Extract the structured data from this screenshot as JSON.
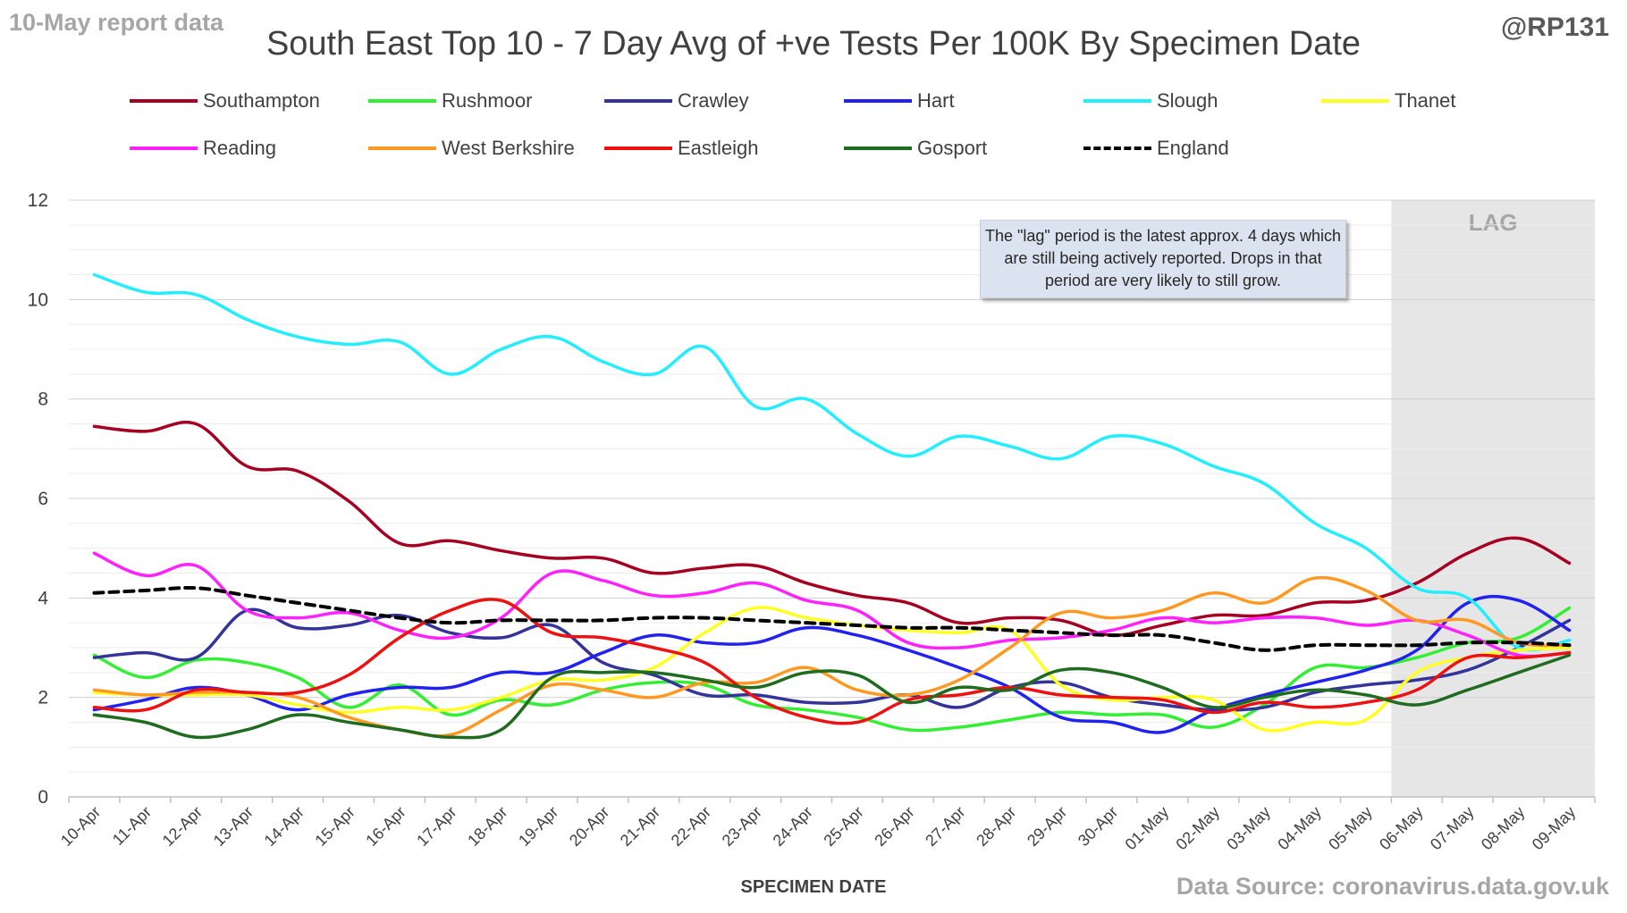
{
  "header": {
    "report_label": "10-May report data",
    "handle": "@RP131",
    "source": "Data Source: coronavirus.data.gov.uk"
  },
  "note": "The \"lag\" period is the latest approx. 4 days which are still being actively reported.  Drops in that period are very likely to still grow.",
  "lag_label": "LAG",
  "chart_data": {
    "type": "line",
    "title": "South East Top 10 - 7 Day Avg of +ve Tests Per 100K By Specimen Date",
    "xlabel": "SPECIMEN DATE",
    "ylabel": "",
    "ylim": [
      0,
      12
    ],
    "yticks": [
      0,
      2,
      4,
      6,
      8,
      10,
      12
    ],
    "grid": true,
    "legend_position": "top",
    "lag_start": "06-May",
    "categories": [
      "10-Apr",
      "11-Apr",
      "12-Apr",
      "13-Apr",
      "14-Apr",
      "15-Apr",
      "16-Apr",
      "17-Apr",
      "18-Apr",
      "19-Apr",
      "20-Apr",
      "21-Apr",
      "22-Apr",
      "23-Apr",
      "24-Apr",
      "25-Apr",
      "26-Apr",
      "27-Apr",
      "28-Apr",
      "29-Apr",
      "30-Apr",
      "01-May",
      "02-May",
      "03-May",
      "04-May",
      "05-May",
      "06-May",
      "07-May",
      "08-May",
      "09-May"
    ],
    "series": [
      {
        "name": "Southampton",
        "color": "#a50021",
        "dash": false,
        "values": [
          7.45,
          7.35,
          7.5,
          6.65,
          6.55,
          5.95,
          5.1,
          5.15,
          4.95,
          4.8,
          4.8,
          4.5,
          4.6,
          4.65,
          4.3,
          4.05,
          3.9,
          3.5,
          3.6,
          3.55,
          3.25,
          3.45,
          3.65,
          3.65,
          3.9,
          3.95,
          4.3,
          4.9,
          5.2,
          4.7
        ]
      },
      {
        "name": "Rushmoor",
        "color": "#33ee33",
        "dash": false,
        "values": [
          2.85,
          2.4,
          2.75,
          2.7,
          2.4,
          1.8,
          2.25,
          1.65,
          1.95,
          1.85,
          2.15,
          2.3,
          2.25,
          1.85,
          1.75,
          1.6,
          1.35,
          1.4,
          1.55,
          1.7,
          1.65,
          1.65,
          1.4,
          1.85,
          2.6,
          2.6,
          2.8,
          3.1,
          3.2,
          3.8
        ]
      },
      {
        "name": "Crawley",
        "color": "#333399",
        "dash": false,
        "values": [
          2.8,
          2.9,
          2.8,
          3.75,
          3.4,
          3.45,
          3.65,
          3.3,
          3.2,
          3.45,
          2.7,
          2.45,
          2.05,
          2.05,
          1.9,
          1.9,
          2.05,
          1.8,
          2.2,
          2.3,
          2.0,
          1.85,
          1.75,
          1.8,
          2.1,
          2.25,
          2.35,
          2.55,
          3.0,
          3.55
        ]
      },
      {
        "name": "Hart",
        "color": "#2222ee",
        "dash": false,
        "values": [
          1.75,
          1.95,
          2.2,
          2.05,
          1.75,
          2.05,
          2.2,
          2.2,
          2.5,
          2.5,
          2.9,
          3.25,
          3.1,
          3.1,
          3.4,
          3.25,
          2.95,
          2.6,
          2.2,
          1.6,
          1.5,
          1.3,
          1.75,
          2.05,
          2.3,
          2.55,
          2.95,
          3.9,
          3.95,
          3.35
        ]
      },
      {
        "name": "Slough",
        "color": "#22eeff",
        "dash": false,
        "values": [
          10.5,
          10.15,
          10.1,
          9.6,
          9.25,
          9.1,
          9.15,
          8.5,
          9.0,
          9.25,
          8.75,
          8.5,
          9.05,
          7.85,
          8.0,
          7.3,
          6.85,
          7.25,
          7.05,
          6.8,
          7.25,
          7.1,
          6.65,
          6.3,
          5.5,
          5.0,
          4.2,
          4.0,
          3.0,
          3.15
        ]
      },
      {
        "name": "Thanet",
        "color": "#ffff22",
        "dash": false,
        "values": [
          2.1,
          2.05,
          2.05,
          2.05,
          1.85,
          1.7,
          1.8,
          1.75,
          2.0,
          2.35,
          2.35,
          2.6,
          3.3,
          3.8,
          3.6,
          3.45,
          3.35,
          3.3,
          3.35,
          2.25,
          1.95,
          2.0,
          1.95,
          1.35,
          1.5,
          1.55,
          2.5,
          2.8,
          2.95,
          3.0
        ]
      },
      {
        "name": "Reading",
        "color": "#ff22ff",
        "dash": false,
        "values": [
          4.9,
          4.45,
          4.65,
          3.75,
          3.6,
          3.7,
          3.35,
          3.2,
          3.6,
          4.5,
          4.35,
          4.05,
          4.1,
          4.3,
          3.95,
          3.75,
          3.1,
          3.0,
          3.15,
          3.2,
          3.35,
          3.6,
          3.5,
          3.6,
          3.6,
          3.45,
          3.55,
          3.25,
          2.85,
          2.9
        ]
      },
      {
        "name": "West Berkshire",
        "color": "#ff9922",
        "dash": false,
        "values": [
          2.15,
          2.05,
          2.1,
          2.1,
          2.0,
          1.6,
          1.35,
          1.25,
          1.75,
          2.25,
          2.15,
          2.0,
          2.3,
          2.3,
          2.6,
          2.15,
          2.05,
          2.35,
          3.0,
          3.7,
          3.6,
          3.75,
          4.1,
          3.9,
          4.4,
          4.15,
          3.55,
          3.55,
          3.1,
          3.05
        ]
      },
      {
        "name": "Eastleigh",
        "color": "#ee1111",
        "dash": false,
        "values": [
          1.8,
          1.75,
          2.15,
          2.1,
          2.1,
          2.45,
          3.2,
          3.75,
          3.95,
          3.3,
          3.2,
          3.0,
          2.7,
          2.0,
          1.6,
          1.5,
          1.95,
          2.05,
          2.2,
          2.05,
          2.0,
          1.95,
          1.7,
          1.9,
          1.8,
          1.9,
          2.15,
          2.8,
          2.8,
          2.9
        ]
      },
      {
        "name": "Gosport",
        "color": "#1f6b1f",
        "dash": false,
        "values": [
          1.65,
          1.5,
          1.2,
          1.35,
          1.65,
          1.5,
          1.35,
          1.2,
          1.35,
          2.4,
          2.5,
          2.5,
          2.35,
          2.2,
          2.5,
          2.45,
          1.9,
          2.2,
          2.15,
          2.55,
          2.5,
          2.2,
          1.8,
          2.0,
          2.15,
          2.05,
          1.85,
          2.15,
          2.5,
          2.85
        ]
      },
      {
        "name": "England",
        "color": "#000000",
        "dash": true,
        "values": [
          4.1,
          4.15,
          4.2,
          4.05,
          3.9,
          3.75,
          3.6,
          3.5,
          3.55,
          3.55,
          3.55,
          3.6,
          3.6,
          3.55,
          3.5,
          3.45,
          3.4,
          3.4,
          3.35,
          3.3,
          3.25,
          3.25,
          3.1,
          2.95,
          3.05,
          3.05,
          3.05,
          3.1,
          3.1,
          3.05
        ]
      }
    ]
  }
}
